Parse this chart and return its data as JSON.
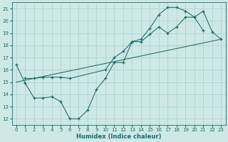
{
  "xlabel": "Humidex (Indice chaleur)",
  "bg_color": "#cde8e5",
  "line_color": "#1a6b6b",
  "grid_color": "#aacfcc",
  "xlim": [
    -0.5,
    23.5
  ],
  "ylim": [
    11.5,
    21.5
  ],
  "xticks": [
    0,
    1,
    2,
    3,
    4,
    5,
    6,
    7,
    8,
    9,
    10,
    11,
    12,
    13,
    14,
    15,
    16,
    17,
    18,
    19,
    20,
    21,
    22,
    23
  ],
  "yticks": [
    12,
    13,
    14,
    15,
    16,
    17,
    18,
    19,
    20,
    21
  ],
  "line1_x": [
    0,
    1,
    2,
    3,
    4,
    5,
    6,
    7,
    8,
    9,
    10,
    11,
    12,
    13,
    14,
    15,
    16,
    17,
    18,
    19,
    20,
    21
  ],
  "line1_y": [
    16.4,
    14.9,
    13.7,
    13.7,
    13.8,
    13.4,
    12.0,
    12.0,
    12.7,
    14.4,
    15.3,
    16.6,
    16.6,
    18.3,
    18.3,
    18.9,
    19.5,
    19.0,
    19.5,
    20.3,
    20.3,
    19.2
  ],
  "line2_x": [
    1,
    2,
    3,
    4,
    5,
    6,
    10,
    11,
    12,
    13,
    14,
    15,
    16,
    17,
    18,
    19,
    20,
    21,
    22,
    23
  ],
  "line2_y": [
    15.3,
    15.3,
    15.4,
    15.4,
    15.4,
    15.3,
    16.0,
    17.0,
    17.5,
    18.3,
    18.5,
    19.4,
    20.5,
    21.1,
    21.1,
    20.8,
    20.3,
    20.8,
    19.1,
    18.5
  ],
  "line3_x": [
    0,
    23
  ],
  "line3_y": [
    15.0,
    18.5
  ]
}
